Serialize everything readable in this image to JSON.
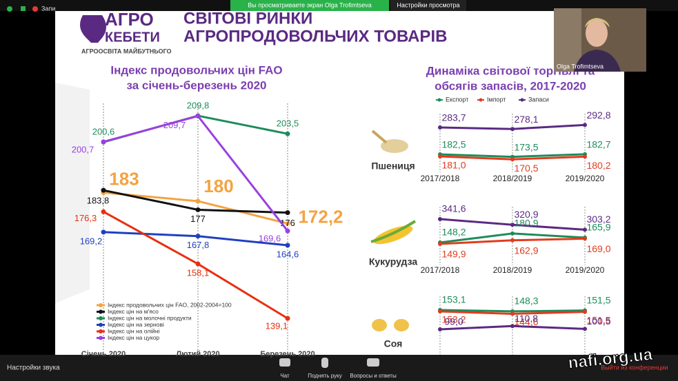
{
  "top_bar": {
    "app_label": "Запи",
    "banner": "Вы просматриваете экран Olga Trofimtseva",
    "view_settings": "Настройки просмотра"
  },
  "slide": {
    "logo": {
      "line1": "АГРО",
      "line2": "КЕБЕТИ",
      "tagline": "АГРООСВІТА МАЙБУТНЬОГО"
    },
    "title": [
      "СВІТОВІ РИНКИ",
      "АГРОПРОДОВОЛЬЧИХ ТОВАРІВ"
    ],
    "left_chart": {
      "type": "line",
      "title": [
        "Індекс продовольчих цін FAO",
        "за січень-березень 2020"
      ],
      "categories": [
        "Січень 2020",
        "Лютий 2020",
        "Березень 2020"
      ],
      "series": [
        {
          "name": "Індекс продовольчих цін FAO, 2002-2004=100",
          "color": "#f4a340",
          "values": [
            183,
            180,
            172.2
          ],
          "value_labels": [
            "183",
            "180",
            "172,2"
          ]
        },
        {
          "name": "Індекс цін на м'ясо",
          "color": "#111111",
          "values": [
            183.8,
            177,
            176
          ],
          "value_labels": [
            "183,8",
            "177",
            "176"
          ]
        },
        {
          "name": "Індекс цін на молочні продукти",
          "color": "#1e8c5a",
          "values": [
            200.6,
            209.8,
            203.5
          ],
          "value_labels": [
            "200,6",
            "209,8",
            "203,5"
          ]
        },
        {
          "name": "Індекс цін на зернові",
          "color": "#2040c0",
          "values": [
            169.2,
            167.8,
            164.6
          ],
          "value_labels": [
            "169,2",
            "167,8",
            "164,6"
          ]
        },
        {
          "name": "Індекс цін на олійні",
          "color": "#e83010",
          "values": [
            176.3,
            158.1,
            139.1
          ],
          "value_labels": [
            "176,3",
            "158,1",
            "139,1"
          ]
        },
        {
          "name": "Індекс цін на цукор",
          "color": "#9a40e0",
          "values": [
            200.7,
            209.7,
            169.6
          ],
          "value_labels": [
            "200,7",
            "209,7",
            "169,6"
          ]
        }
      ]
    },
    "right_chart": {
      "type": "line",
      "title": [
        "Динаміка світової торгівлі та",
        "обсягів запасів, 2017-2020"
      ],
      "legend": [
        {
          "name": "Експорт",
          "color": "#1e8c5a"
        },
        {
          "name": "Імпорт",
          "color": "#e03c1e"
        },
        {
          "name": "Запаси",
          "color": "#5a2a82"
        }
      ],
      "categories": [
        "2017/2018",
        "2018/2019",
        "2019/2020"
      ],
      "panels": [
        {
          "name": "Пшениця",
          "series": [
            {
              "values": [
                283.7,
                278.1,
                292.8
              ],
              "value_labels": [
                "283,7",
                "278,1",
                "292,8"
              ]
            },
            {
              "values": [
                182.5,
                173.5,
                182.7
              ],
              "value_labels": [
                "182,5",
                "173,5",
                "182,7"
              ]
            },
            {
              "values": [
                181.0,
                170.5,
                180.2
              ],
              "value_labels": [
                "181,0",
                "170,5",
                "180,2"
              ]
            }
          ]
        },
        {
          "name": "Кукурудза",
          "series": [
            {
              "values": [
                341.6,
                320.9,
                303.2
              ],
              "value_labels": [
                "341,6",
                "320,9",
                "303,2"
              ]
            },
            {
              "values": [
                148.2,
                180.9,
                165.9
              ],
              "value_labels": [
                "148,2",
                "180,9",
                "165,9"
              ]
            },
            {
              "values": [
                149.9,
                162.9,
                169.0
              ],
              "value_labels": [
                "149,9",
                "162,9",
                "169,0"
              ]
            }
          ]
        },
        {
          "name": "Соя",
          "series": [
            {
              "values": [
                153.1,
                148.3,
                151.5
              ],
              "value_labels": [
                "153,1",
                "148,3",
                "151,5"
              ]
            },
            {
              "values": [
                153.2,
                144.6,
                151.5
              ],
              "value_labels": [
                "153,2",
                "144,6",
                "151,5"
              ]
            },
            {
              "values": [
                99.0,
                110.8,
                100.5
              ],
              "value_labels": [
                "99,0",
                "110,8",
                "100,5"
              ]
            }
          ]
        }
      ]
    }
  },
  "webcam": {
    "name": "Olga Trofimtseva"
  },
  "bottom_bar": {
    "audio_settings": "Настройки звука",
    "chat": "Чат",
    "raise_hand": "Поднять руку",
    "qa": "Вопросы и ответы",
    "leave": "Выйти из конференции"
  },
  "watermark": "nafi.org.ua"
}
